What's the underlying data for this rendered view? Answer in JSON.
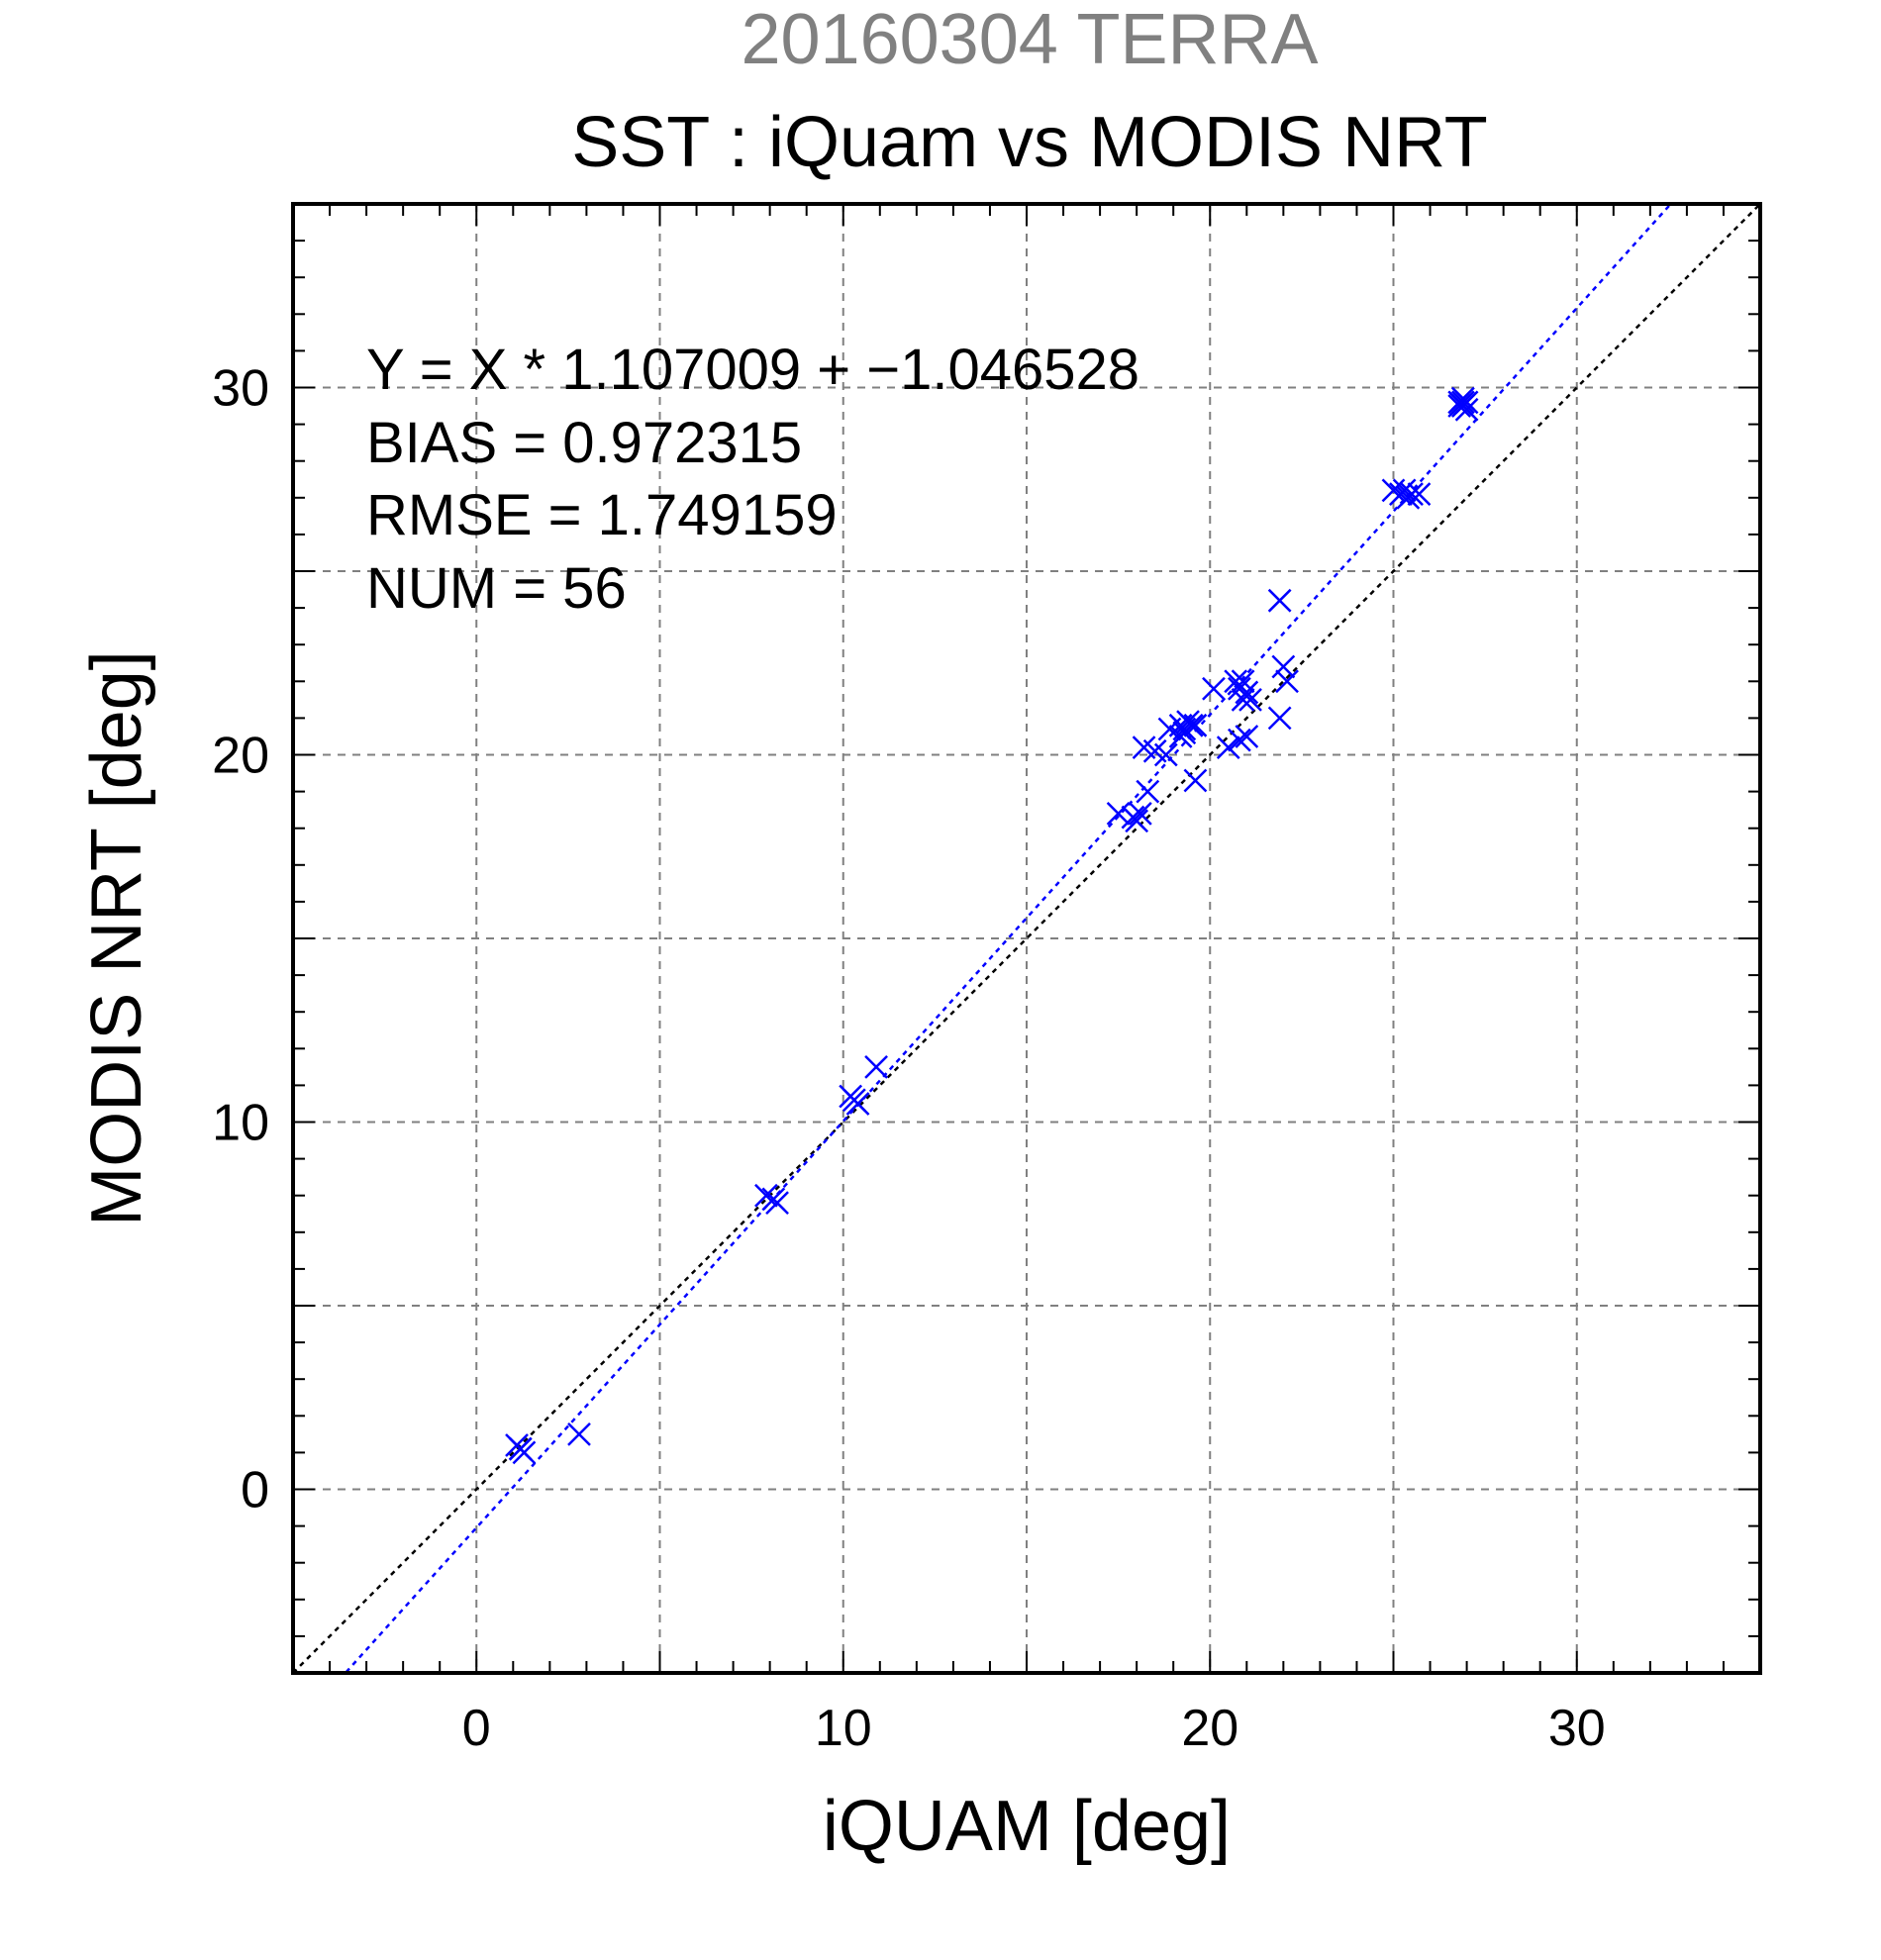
{
  "chart_data": {
    "type": "scatter",
    "subtitle": "20160304 TERRA",
    "title": "SST : iQuam vs MODIS NRT",
    "xlabel": "iQUAM [deg]",
    "ylabel": "MODIS NRT [deg]",
    "xlim": [
      -5,
      35
    ],
    "ylim": [
      -5,
      35
    ],
    "xticks": [
      0,
      10,
      20,
      30
    ],
    "yticks": [
      0,
      10,
      20,
      30
    ],
    "minor_tick_step": 1,
    "grid_step": 5,
    "grid": true,
    "stats": [
      "Y = X * 1.107009 + −1.046528",
      "BIAS = 0.972315",
      "RMSE = 1.749159",
      "NUM = 56"
    ],
    "fit_line": {
      "slope": 1.107009,
      "intercept": -1.046528,
      "color": "#0000ff"
    },
    "identity_line": {
      "slope": 1,
      "intercept": 0,
      "color": "#000000"
    },
    "marker_color": "#0000ff",
    "series": [
      {
        "points": [
          [
            1.2,
            1.1
          ],
          [
            1.1,
            1.2
          ],
          [
            1.3,
            1.0
          ],
          [
            1.2,
            1.1
          ],
          [
            2.8,
            1.5
          ],
          [
            7.9,
            8.0
          ],
          [
            8.2,
            7.8
          ],
          [
            8.1,
            7.9
          ],
          [
            10.3,
            10.6
          ],
          [
            10.4,
            10.5
          ],
          [
            10.2,
            10.7
          ],
          [
            10.9,
            11.5
          ],
          [
            17.5,
            18.4
          ],
          [
            17.9,
            18.3
          ],
          [
            18.1,
            18.4
          ],
          [
            18.0,
            18.2
          ],
          [
            18.3,
            19.0
          ],
          [
            18.2,
            20.2
          ],
          [
            18.5,
            20.1
          ],
          [
            18.8,
            20.0
          ],
          [
            18.9,
            20.7
          ],
          [
            19.2,
            20.8
          ],
          [
            19.3,
            20.7
          ],
          [
            19.4,
            20.9
          ],
          [
            19.5,
            20.8
          ],
          [
            19.3,
            20.6
          ],
          [
            19.6,
            20.8
          ],
          [
            19.2,
            20.5
          ],
          [
            19.6,
            19.3
          ],
          [
            20.1,
            21.8
          ],
          [
            20.5,
            20.2
          ],
          [
            20.7,
            22.0
          ],
          [
            20.8,
            21.8
          ],
          [
            20.9,
            22.0
          ],
          [
            20.9,
            21.5
          ],
          [
            21.0,
            21.7
          ],
          [
            21.1,
            21.5
          ],
          [
            20.8,
            20.4
          ],
          [
            21.0,
            20.5
          ],
          [
            21.9,
            24.2
          ],
          [
            22.0,
            22.4
          ],
          [
            22.1,
            22.0
          ],
          [
            21.9,
            21.0
          ],
          [
            25.0,
            27.2
          ],
          [
            25.2,
            27.1
          ],
          [
            25.3,
            27.2
          ],
          [
            25.5,
            27.1
          ],
          [
            25.7,
            27.1
          ],
          [
            25.4,
            27.0
          ],
          [
            26.8,
            29.6
          ],
          [
            26.9,
            29.5
          ],
          [
            27.0,
            29.6
          ],
          [
            26.9,
            29.7
          ],
          [
            26.8,
            29.5
          ],
          [
            27.0,
            29.4
          ],
          [
            26.9,
            29.6
          ]
        ]
      }
    ]
  }
}
